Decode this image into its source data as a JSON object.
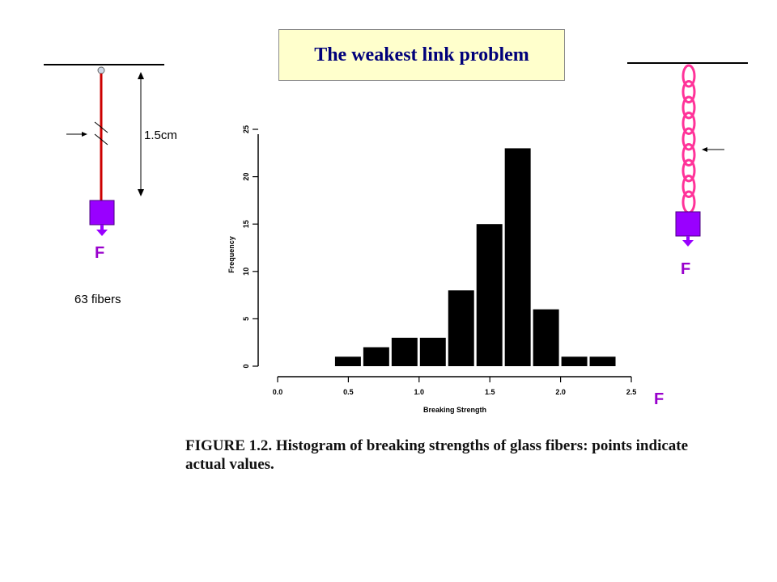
{
  "title": "The weakest link problem",
  "left_diagram": {
    "length_label": "1.5cm",
    "force_label": "F",
    "count_label": "63 fibers"
  },
  "right_diagram": {
    "force_label": "F"
  },
  "extra_force_label": "F",
  "caption": "FIGURE 1.2. Histogram of breaking strengths of glass fibers: points indicate actual values.",
  "colors": {
    "fiber": "#cc0000",
    "chain": "#ff3399",
    "weight": "#9900ff",
    "title_bg": "#ffffcc",
    "title_text": "#00007a",
    "bars": "#000000"
  },
  "chart_data": {
    "type": "bar",
    "xlabel": "Breaking Strength",
    "ylabel": "Frequency",
    "xlim": [
      0.0,
      2.5
    ],
    "ylim": [
      0,
      25
    ],
    "x_ticks": [
      "0.0",
      "0.5",
      "1.0",
      "1.5",
      "2.0",
      "2.5"
    ],
    "y_ticks": [
      "0",
      "5",
      "10",
      "15",
      "20",
      "25"
    ],
    "bins": [
      {
        "x0": 0.4,
        "x1": 0.6,
        "value": 1
      },
      {
        "x0": 0.6,
        "x1": 0.8,
        "value": 2
      },
      {
        "x0": 0.8,
        "x1": 1.0,
        "value": 3
      },
      {
        "x0": 1.0,
        "x1": 1.2,
        "value": 3
      },
      {
        "x0": 1.2,
        "x1": 1.4,
        "value": 8
      },
      {
        "x0": 1.4,
        "x1": 1.6,
        "value": 15
      },
      {
        "x0": 1.6,
        "x1": 1.8,
        "value": 23
      },
      {
        "x0": 1.8,
        "x1": 2.0,
        "value": 6
      },
      {
        "x0": 2.0,
        "x1": 2.2,
        "value": 1
      },
      {
        "x0": 2.2,
        "x1": 2.4,
        "value": 1
      }
    ]
  }
}
